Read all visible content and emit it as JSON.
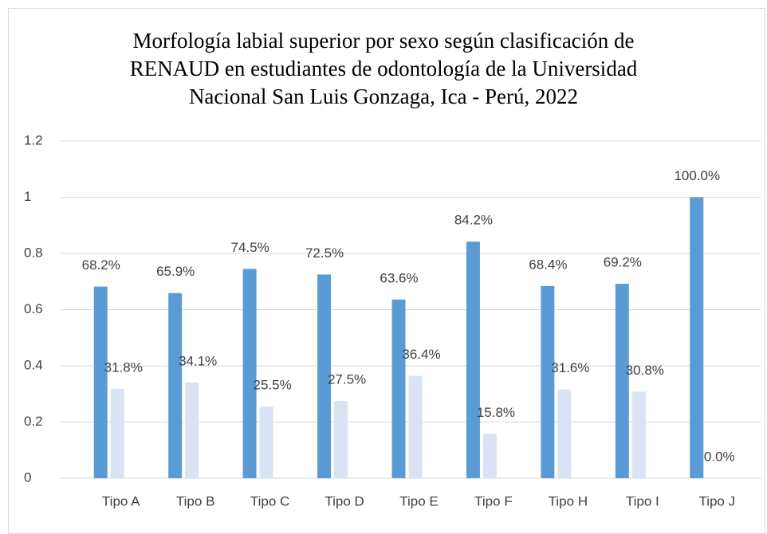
{
  "chart_data": {
    "type": "bar",
    "title": "Morfología labial superior por sexo según clasificación de RENAUD en estudiantes de odontología de la Universidad Nacional San Luis Gonzaga, Ica - Perú, 2022",
    "categories": [
      "Tipo A",
      "Tipo B",
      "Tipo C",
      "Tipo D",
      "Tipo E",
      "Tipo F",
      "Tipo H",
      "Tipo I",
      "Tipo J"
    ],
    "series": [
      {
        "color": "#5b9bd5",
        "values": [
          0.682,
          0.659,
          0.745,
          0.725,
          0.636,
          0.842,
          0.684,
          0.692,
          1.0
        ],
        "value_labels": [
          "68.2%",
          "65.9%",
          "74.5%",
          "72.5%",
          "63.6%",
          "84.2%",
          "68.4%",
          "69.2%",
          "100.0%"
        ]
      },
      {
        "color": "#dae3f3",
        "values": [
          0.318,
          0.341,
          0.255,
          0.275,
          0.364,
          0.158,
          0.316,
          0.308,
          0.0
        ],
        "value_labels": [
          "31.8%",
          "34.1%",
          "25.5%",
          "27.5%",
          "36.4%",
          "15.8%",
          "31.6%",
          "30.8%",
          "0.0%"
        ]
      }
    ],
    "ylim": [
      0,
      1.2
    ],
    "yticks": [
      0,
      0.2,
      0.4,
      0.6,
      0.8,
      1,
      1.2
    ],
    "grid": true
  }
}
